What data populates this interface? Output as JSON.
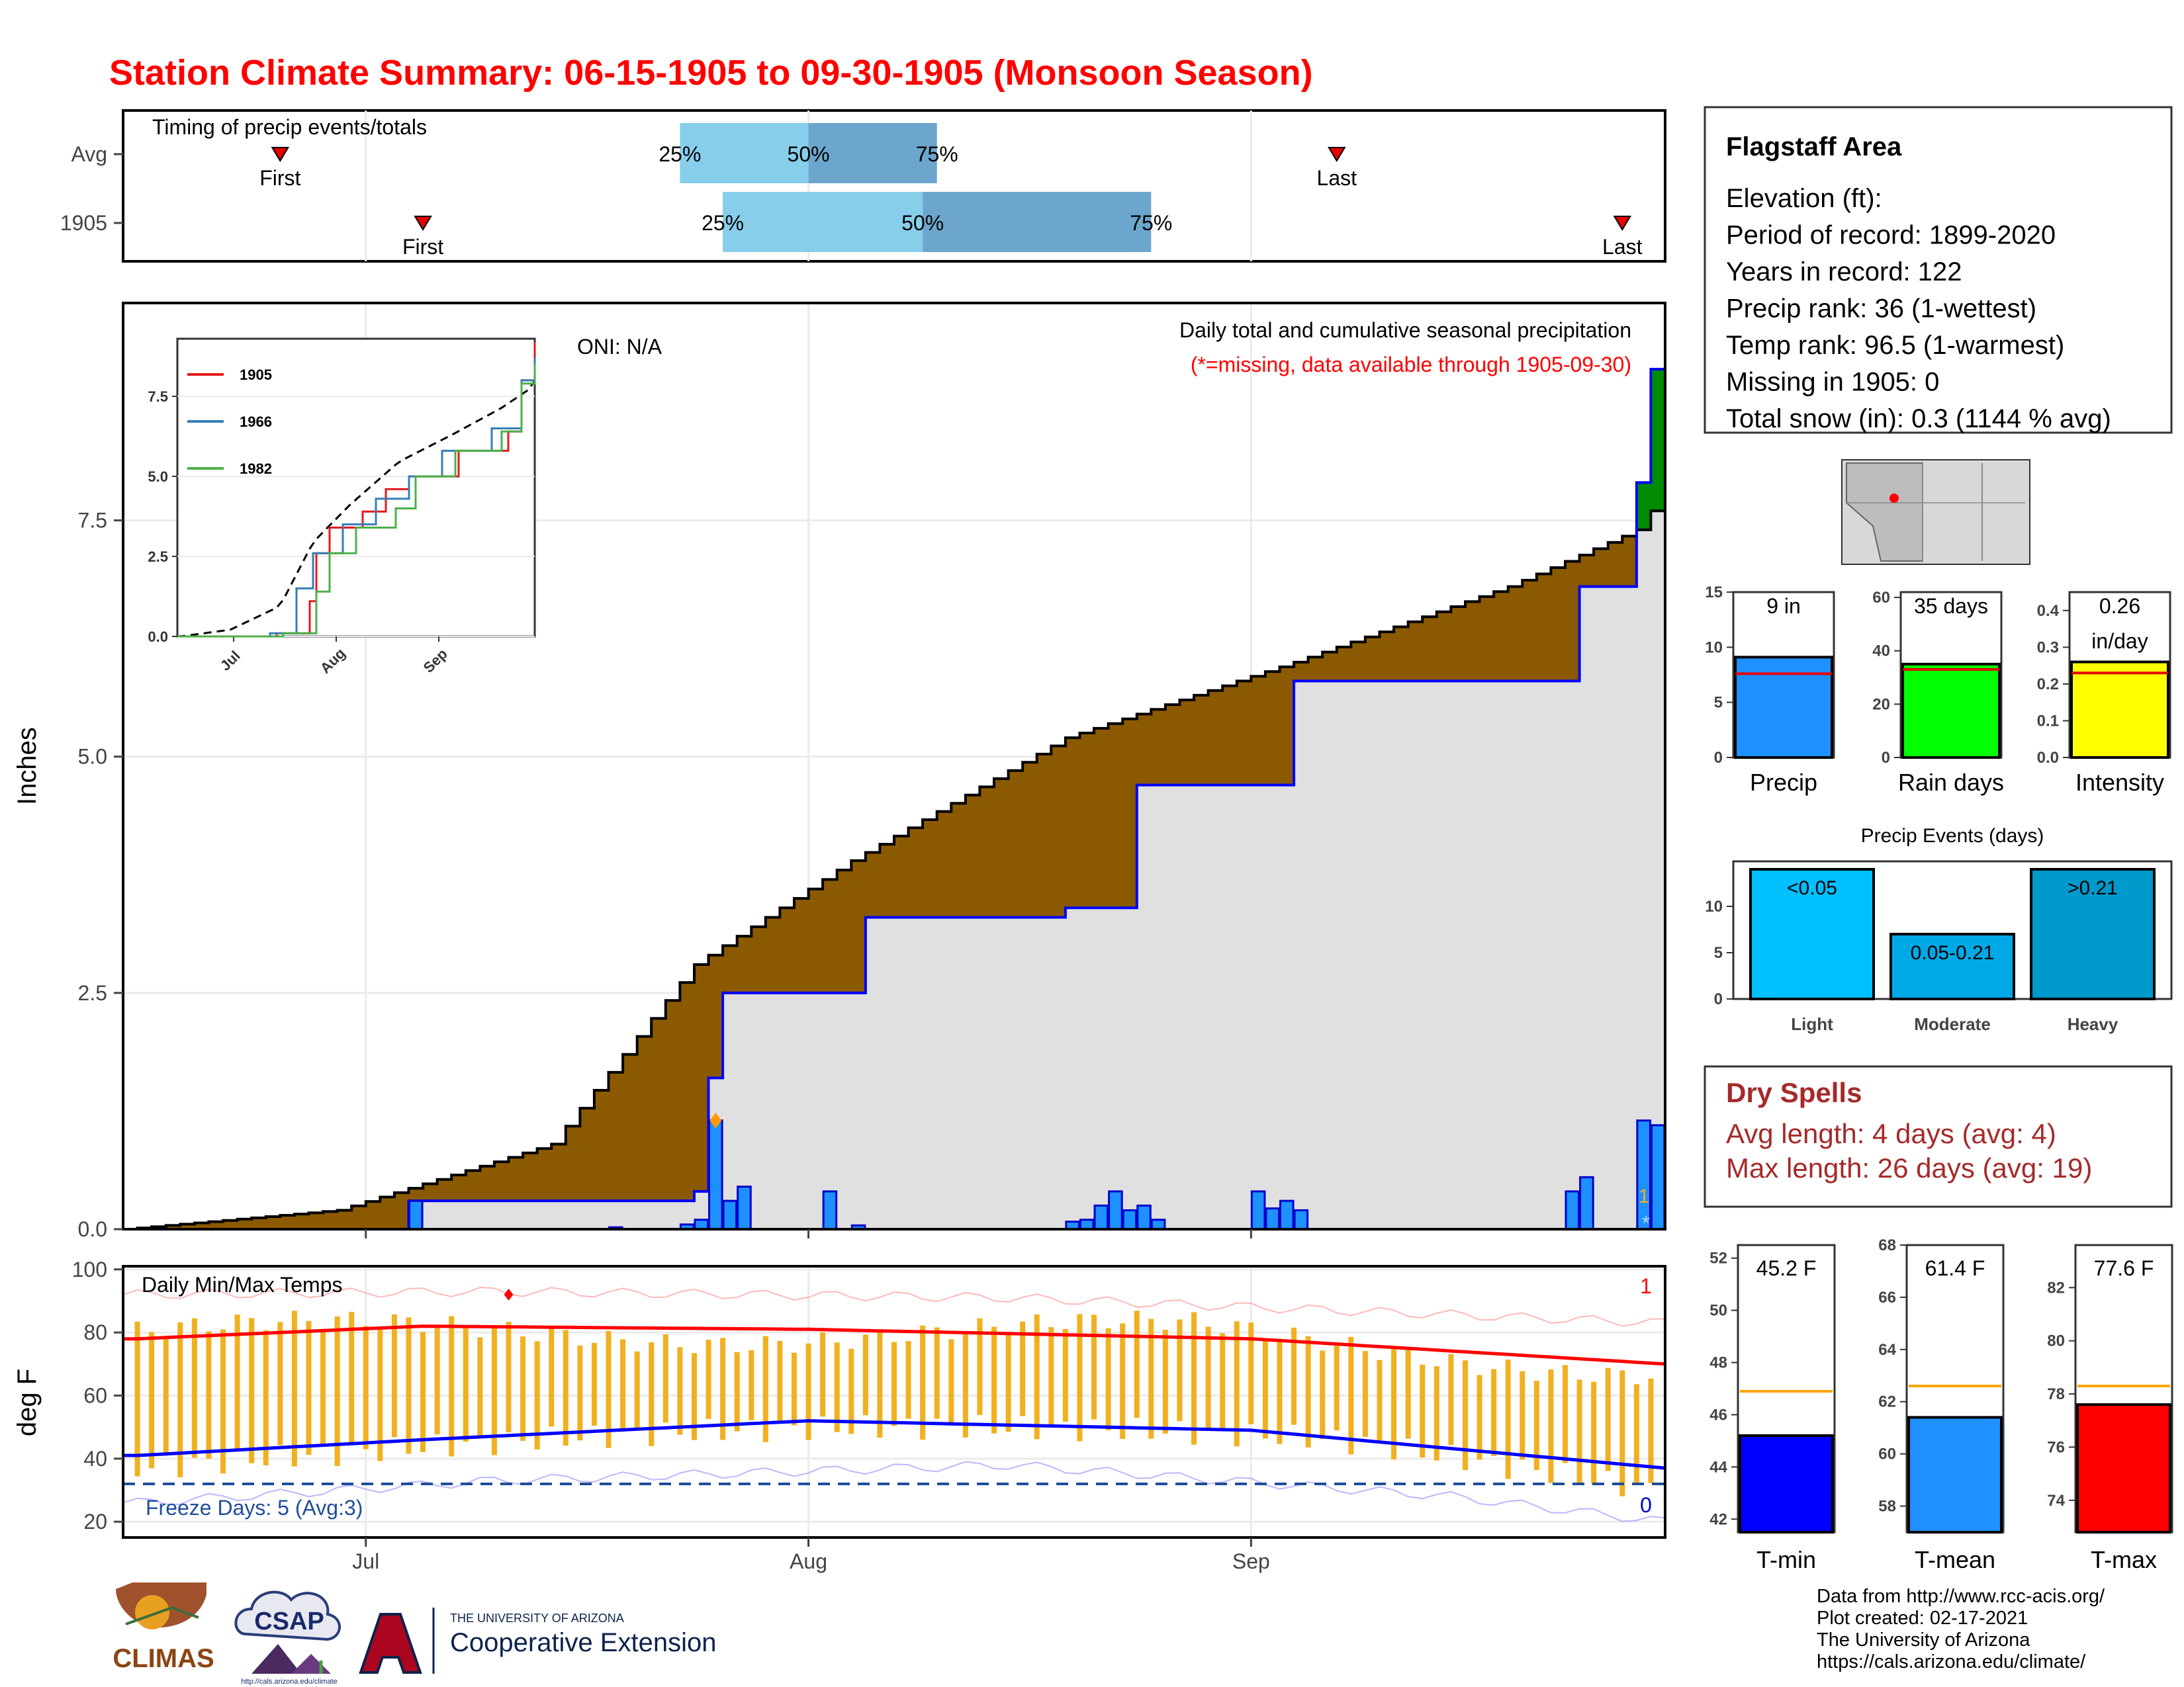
{
  "title": "Station Climate Summary: 06-15-1905 to 09-30-1905 (Monsoon Season)",
  "timing_panel": {
    "label": "Timing of precip events/totals",
    "rows": [
      {
        "name": "Avg",
        "first_label": "First",
        "last_label": "Last",
        "first": "1905-06-25",
        "p25": "1905-07-23",
        "p50": "1905-08-01",
        "p75": "1905-08-10",
        "last": "1905-09-07"
      },
      {
        "name": "1905",
        "first_label": "First",
        "last_label": "Last",
        "first": "1905-07-05",
        "p25": "1905-07-26",
        "p50": "1905-08-09",
        "p75": "1905-08-25",
        "last": "1905-09-27"
      }
    ],
    "pct_labels": [
      "25%",
      "50%",
      "75%"
    ],
    "colors": {
      "light": "#87ceeb",
      "dark": "#6ca6cd",
      "marker": "#e60000"
    }
  },
  "precip_panel": {
    "ylabel": "Inches",
    "yticks": [
      "0.0",
      "2.5",
      "5.0",
      "7.5"
    ],
    "ylim": [
      0,
      9.8
    ],
    "xticks": [
      "Jul",
      "Aug",
      "Sep"
    ],
    "oni": "ONI: N/A",
    "caption": "Daily total and cumulative seasonal precipitation",
    "missing_note": "(*=missing, data available through 1905-09-30)",
    "missing_count": "1",
    "missing_marker": "*",
    "colors": {
      "avg_fill_wet": "#8b5a00",
      "avg_fill_dry": "#e0e0e0",
      "obs_line": "#0000ff",
      "bar": "#1e90ff",
      "extra_green": "#008b00"
    }
  },
  "inset": {
    "series": [
      {
        "name": "1905",
        "color": "#e41a1c"
      },
      {
        "name": "1966",
        "color": "#377eb8"
      },
      {
        "name": "1982",
        "color": "#4daf4a"
      }
    ],
    "yticks": [
      "0.0",
      "2.5",
      "5.0",
      "7.5"
    ],
    "xticks": [
      "Jul",
      "Aug",
      "Sep"
    ]
  },
  "temp_panel": {
    "ylabel": "deg F",
    "label": "Daily Min/Max Temps",
    "yticks": [
      "20",
      "40",
      "60",
      "80",
      "100"
    ],
    "freeze": "Freeze Days: 5 (Avg:3)",
    "count_hot": "1",
    "count_cold": "0",
    "colors": {
      "bar": "#f0b020",
      "max": "#ff0000",
      "min": "#0000ff"
    }
  },
  "station_box": {
    "name": "Flagstaff Area",
    "lines": [
      "Elevation (ft):",
      "Period of record: 1899-2020",
      "Years in record: 122",
      "Precip rank: 36 (1-wettest)",
      "Temp rank: 96.5 (1-warmest)",
      "Missing in 1905: 0",
      "Total snow (in): 0.3 (1144 % avg)"
    ]
  },
  "mini_bars": [
    {
      "label": "Precip",
      "value": 9.1,
      "avg": 7.6,
      "ymax": 15,
      "yticks": [
        "0",
        "5",
        "10",
        "15"
      ],
      "text": [
        "9 in"
      ],
      "color": "#1e90ff"
    },
    {
      "label": "Rain days",
      "value": 35,
      "avg": 33,
      "ymax": 62,
      "yticks": [
        "0",
        "20",
        "40",
        "60"
      ],
      "text": [
        "35 days"
      ],
      "color": "#00ff00"
    },
    {
      "label": "Intensity",
      "value": 0.26,
      "avg": 0.23,
      "ymax": 0.45,
      "yticks": [
        "0.0",
        "0.1",
        "0.2",
        "0.3",
        "0.4"
      ],
      "text": [
        "0.26",
        "in/day"
      ],
      "color": "#ffff00"
    }
  ],
  "events": {
    "title": "Precip Events (days)",
    "ymax": 14,
    "yticks": [
      "0",
      "5",
      "10"
    ],
    "bars": [
      {
        "category": "Light",
        "value": 14,
        "label": "<0.05",
        "color": "#00bfff"
      },
      {
        "category": "Moderate",
        "value": 7,
        "label": "0.05-0.21",
        "color": "#00a9e6"
      },
      {
        "category": "Heavy",
        "value": 14,
        "label": ">0.21",
        "color": "#0099cc"
      }
    ]
  },
  "dry_spells": {
    "title": "Dry Spells",
    "avg_line": "Avg length: 4 days (avg: 4)",
    "max_line": "Max length: 26 days (avg: 19)"
  },
  "temp_bars": [
    {
      "label": "T-min",
      "value": 45.2,
      "text": "45.2 F",
      "avg": 46.9,
      "ymin": 41.5,
      "ymax": 52.5,
      "yticks": [
        42,
        44,
        46,
        48,
        50,
        52
      ],
      "color": "#0000ff"
    },
    {
      "label": "T-mean",
      "value": 61.4,
      "text": "61.4 F",
      "avg": 62.6,
      "ymin": 57,
      "ymax": 68,
      "yticks": [
        58,
        60,
        62,
        64,
        66,
        68
      ],
      "color": "#1e90ff"
    },
    {
      "label": "T-max",
      "value": 77.6,
      "text": "77.6 F",
      "avg": 78.3,
      "ymin": 72.8,
      "ymax": 83.6,
      "yticks": [
        74,
        76,
        78,
        80,
        82
      ],
      "color": "#ff0000"
    }
  ],
  "footer": {
    "lines": [
      "Data from http://www.rcc-acis.org/",
      "Plot created: 02-17-2021",
      "The University of Arizona",
      "https://cals.arizona.edu/climate/"
    ]
  },
  "logos": {
    "climas": "CLIMAS",
    "csap": "CSAP",
    "csap_url": "http://cals.arizona.edu/climate",
    "ua_small": "THE UNIVERSITY OF ARIZONA",
    "ua_big": "Cooperative Extension"
  },
  "chart_data": [
    {
      "type": "area",
      "title": "Daily total and cumulative seasonal precipitation",
      "ylabel": "Inches",
      "ylim": [
        0,
        9.8
      ],
      "x_range": [
        "1905-06-15",
        "1905-09-30"
      ],
      "avg_cumulative_end": 7.6,
      "series": [
        {
          "name": "avg cumulative",
          "x": [
            "06-15",
            "06-30",
            "07-15",
            "07-25",
            "08-05",
            "08-20",
            "09-05",
            "09-20",
            "09-29",
            "09-30"
          ],
          "values": [
            0,
            0.2,
            0.9,
            2.8,
            3.9,
            5.2,
            6.0,
            6.8,
            7.4,
            7.6
          ]
        },
        {
          "name": "1905 cumulative",
          "x": [
            "06-15",
            "07-05",
            "07-25",
            "07-26",
            "07-27",
            "08-06",
            "08-20",
            "08-25",
            "09-05",
            "09-25",
            "09-29",
            "09-30"
          ],
          "values": [
            0,
            0.3,
            0.4,
            1.6,
            2.5,
            3.3,
            3.4,
            4.7,
            5.8,
            6.8,
            7.9,
            9.1
          ]
        },
        {
          "name": "1905 daily",
          "x": [
            "07-05",
            "07-19",
            "07-24",
            "07-25",
            "07-26",
            "07-27",
            "07-28",
            "08-03",
            "08-05",
            "08-20",
            "08-21",
            "08-22",
            "08-23",
            "08-24",
            "08-25",
            "08-26",
            "09-02",
            "09-03",
            "09-04",
            "09-05",
            "09-24",
            "09-25",
            "09-29",
            "09-30"
          ],
          "values": [
            0.3,
            0.02,
            0.05,
            0.1,
            1.15,
            0.3,
            0.45,
            0.4,
            0.04,
            0.08,
            0.1,
            0.25,
            0.4,
            0.2,
            0.25,
            0.1,
            0.4,
            0.22,
            0.3,
            0.2,
            0.4,
            0.55,
            1.15,
            1.1
          ]
        }
      ]
    },
    {
      "type": "bar",
      "title": "Daily Min/Max Temps",
      "ylabel": "deg F",
      "ylim": [
        15,
        100
      ],
      "series": [
        {
          "name": "avg max",
          "x": [
            "06-15",
            "07-05",
            "08-01",
            "09-01",
            "09-30"
          ],
          "values": [
            78,
            82,
            81,
            78,
            70
          ]
        },
        {
          "name": "avg min",
          "x": [
            "06-15",
            "07-05",
            "08-01",
            "09-01",
            "09-30"
          ],
          "values": [
            41,
            46,
            52,
            49,
            37
          ]
        },
        {
          "name": "record max",
          "x": [
            "06-15",
            "07-10",
            "08-15",
            "09-30"
          ],
          "values": [
            92,
            93,
            91,
            83
          ]
        },
        {
          "name": "record min",
          "x": [
            "06-15",
            "07-10",
            "08-15",
            "09-15",
            "09-30"
          ],
          "values": [
            26,
            33,
            38,
            28,
            20
          ]
        }
      ]
    },
    {
      "type": "bar",
      "categories": [
        "Light",
        "Moderate",
        "Heavy"
      ],
      "values": [
        14,
        7,
        14
      ],
      "title": "Precip Events (days)"
    },
    {
      "type": "bar",
      "categories": [
        "Precip",
        "Rain days",
        "Intensity"
      ],
      "values": [
        9.1,
        35,
        0.26
      ]
    },
    {
      "type": "bar",
      "categories": [
        "T-min",
        "T-mean",
        "T-max"
      ],
      "values": [
        45.2,
        61.4,
        77.6
      ]
    }
  ]
}
